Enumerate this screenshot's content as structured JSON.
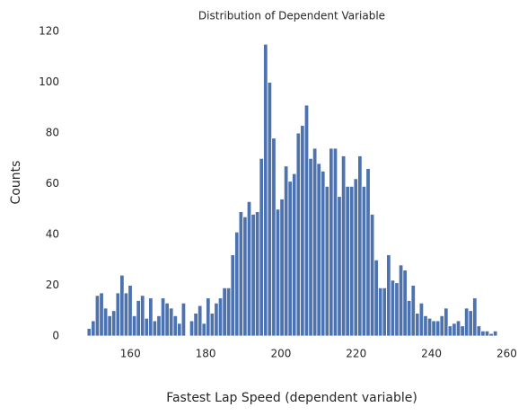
{
  "chart_data": {
    "type": "histogram",
    "title": "Distribution of Dependent Variable",
    "xlabel": "Fastest Lap Speed (dependent variable)",
    "ylabel": "Counts",
    "color": "#4c72b0",
    "grid": false,
    "bins": [
      148.5,
      149.59,
      150.68,
      151.77,
      152.86,
      153.95,
      155.04,
      156.13,
      157.22,
      158.31,
      159.4,
      160.49,
      161.58,
      162.67,
      163.76,
      164.85,
      165.94,
      167.03,
      168.12,
      169.21,
      170.3,
      171.39,
      172.48,
      173.57,
      174.66,
      175.75,
      176.84,
      177.93,
      179.02,
      180.11,
      181.2,
      182.29,
      183.38,
      184.47,
      185.56,
      186.65,
      187.74,
      188.83,
      189.92,
      191.01,
      192.1,
      193.19,
      194.28,
      195.37,
      196.46,
      197.55,
      198.64,
      199.73,
      200.82,
      201.91,
      203,
      204.09,
      205.18,
      206.27,
      207.36,
      208.45,
      209.54,
      210.63,
      211.72,
      212.81,
      213.9,
      214.99,
      216.08,
      217.17,
      218.26,
      219.35,
      220.44,
      221.53,
      222.62,
      223.71,
      224.8,
      225.89,
      226.98,
      228.07,
      229.16,
      230.25,
      231.34,
      232.43,
      233.52,
      234.61,
      235.7,
      236.79,
      237.88,
      238.97,
      240.06,
      241.15,
      242.24,
      243.33,
      244.42,
      245.51,
      246.6,
      247.69,
      248.78,
      249.87,
      250.96,
      252.05,
      253.14,
      254.23,
      255.32,
      256.41,
      257.5
    ],
    "counts": [
      3,
      6,
      16,
      17,
      11,
      8,
      10,
      17,
      24,
      17,
      20,
      8,
      14,
      16,
      7,
      15,
      6,
      8,
      15,
      13,
      11,
      8,
      5,
      13,
      0,
      6,
      9,
      12,
      5,
      15,
      9,
      13,
      15,
      19,
      19,
      32,
      41,
      49,
      47,
      53,
      48,
      49,
      70,
      115,
      100,
      78,
      50,
      54,
      67,
      61,
      64,
      80,
      83,
      91,
      70,
      74,
      68,
      65,
      59,
      74,
      74,
      55,
      71,
      59,
      59,
      62,
      71,
      59,
      66,
      48,
      30,
      19,
      19,
      32,
      22,
      21,
      28,
      26,
      14,
      20,
      9,
      13,
      8,
      7,
      6,
      6,
      8,
      11,
      4,
      5,
      6,
      4,
      11,
      10,
      15,
      4,
      2,
      2,
      1,
      2
    ],
    "xlim": [
      143,
      263
    ],
    "ylim": [
      0,
      120.75
    ],
    "xticks": [
      160,
      180,
      200,
      220,
      240,
      260
    ],
    "yticks": [
      0,
      20,
      40,
      60,
      80,
      100,
      120
    ]
  }
}
